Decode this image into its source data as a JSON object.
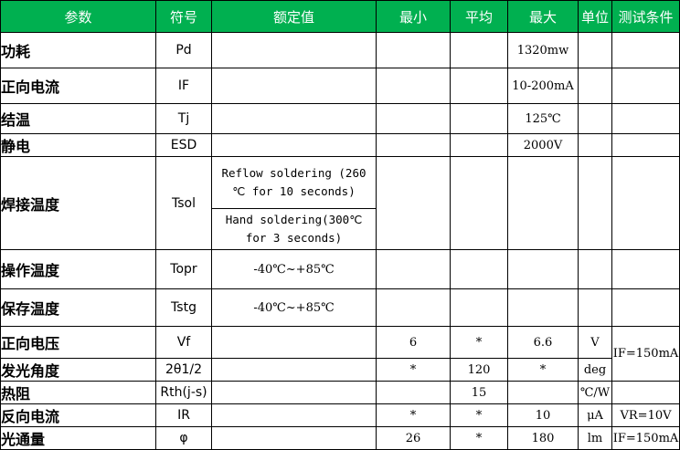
{
  "header": [
    "参数",
    "符号",
    "额定值",
    "最小",
    "平均",
    "最大",
    "单位",
    "测试条件"
  ],
  "rows": [
    {
      "param": "功耗",
      "symbol": "Pd",
      "rated": "",
      "min": "",
      "avg": "",
      "max": "1320mw",
      "unit": "",
      "cond": ""
    },
    {
      "param": "正向电流",
      "symbol": "IF",
      "rated": "",
      "min": "",
      "avg": "",
      "max": "10-200mA",
      "unit": "",
      "cond": ""
    },
    {
      "param": "结温",
      "symbol": "Tj",
      "rated": "",
      "min": "",
      "avg": "",
      "max": "125℃",
      "unit": "",
      "cond": ""
    },
    {
      "param": "静电",
      "symbol": "ESD",
      "rated": "",
      "min": "",
      "avg": "",
      "max": "2000V",
      "unit": "",
      "cond": ""
    },
    {
      "param": "焊接温度",
      "symbol": "Tsol",
      "rated": "Reflow soldering (260 ℃ for 10 seconds)",
      "rated2": "Hand soldering(300℃ for 3 seconds)",
      "min": "",
      "avg": "",
      "max": "",
      "unit": "",
      "cond": ""
    },
    {
      "param": "操作温度",
      "symbol": "Topr",
      "rated": "-40℃~+85℃",
      "min": "",
      "avg": "",
      "max": "",
      "unit": "",
      "cond": ""
    },
    {
      "param": "保存温度",
      "symbol": "Tstg",
      "rated": "-40℃~+85℃",
      "min": "",
      "avg": "",
      "max": "",
      "unit": "",
      "cond": ""
    },
    {
      "param": "正向电压",
      "symbol": "Vf",
      "rated": "",
      "min": "6",
      "avg": "*",
      "max": "6.6",
      "unit": "V",
      "cond": "IF=150mA"
    },
    {
      "param": "发光角度",
      "symbol": "2θ1/2",
      "rated": "",
      "min": "*",
      "avg": "120",
      "max": "*",
      "unit": "deg"
    },
    {
      "param": "热阻",
      "symbol": "Rth(j-s)",
      "rated": "",
      "min": "",
      "avg": "15",
      "max": "",
      "unit": "℃/W",
      "cond": ""
    },
    {
      "param": "反向电流",
      "symbol": "IR",
      "rated": "",
      "min": "*",
      "avg": "*",
      "max": "10",
      "unit": "μA",
      "cond": "VR=10V"
    },
    {
      "param": "光通量",
      "symbol": "φ",
      "rated": "",
      "min": "26",
      "avg": "*",
      "max": "180",
      "unit": "lm",
      "cond": "IF=150mA"
    }
  ],
  "colors": {
    "header_bg": "#00b050",
    "header_text": "#ffffff"
  }
}
